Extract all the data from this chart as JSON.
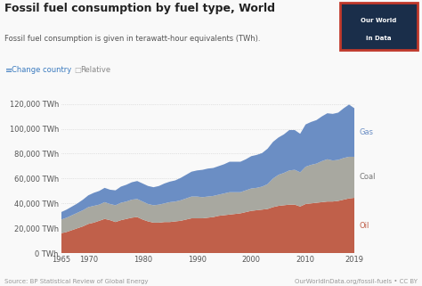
{
  "title": "Fossil fuel consumption by fuel type, World",
  "subtitle": "Fossil fuel consumption is given in terawatt-hour equivalents (TWh).",
  "source_left": "Source: BP Statistical Review of Global Energy",
  "source_right": "OurWorldInData.org/fossil-fuels • CC BY",
  "years": [
    1965,
    1966,
    1967,
    1968,
    1969,
    1970,
    1971,
    1972,
    1973,
    1974,
    1975,
    1976,
    1977,
    1978,
    1979,
    1980,
    1981,
    1982,
    1983,
    1984,
    1985,
    1986,
    1987,
    1988,
    1989,
    1990,
    1991,
    1992,
    1993,
    1994,
    1995,
    1996,
    1997,
    1998,
    1999,
    2000,
    2001,
    2002,
    2003,
    2004,
    2005,
    2006,
    2007,
    2008,
    2009,
    2010,
    2011,
    2012,
    2013,
    2014,
    2015,
    2016,
    2017,
    2018,
    2019
  ],
  "oil": [
    16000,
    17000,
    18500,
    20000,
    21500,
    23500,
    24500,
    26000,
    27500,
    26500,
    25000,
    26500,
    27500,
    28500,
    29000,
    27000,
    25500,
    24500,
    24500,
    25000,
    25000,
    25500,
    26000,
    27000,
    28000,
    28000,
    28000,
    28500,
    29000,
    30000,
    30500,
    31000,
    31500,
    32000,
    33000,
    34000,
    34500,
    35000,
    35500,
    37000,
    38000,
    38500,
    39000,
    39000,
    37500,
    39500,
    40000,
    40500,
    41000,
    41500,
    41500,
    42000,
    43000,
    44000,
    44500
  ],
  "coal": [
    11000,
    11500,
    12000,
    12500,
    13000,
    13500,
    13500,
    13000,
    13500,
    13000,
    13500,
    14000,
    14000,
    14500,
    14500,
    14500,
    14000,
    14000,
    14500,
    15000,
    16000,
    16000,
    16500,
    17000,
    17500,
    17500,
    17000,
    17000,
    17000,
    17000,
    17500,
    18000,
    17500,
    17000,
    17500,
    18000,
    18000,
    18500,
    20000,
    23000,
    25000,
    26000,
    27500,
    28000,
    27500,
    30000,
    31000,
    31500,
    33000,
    34000,
    33000,
    33000,
    33500,
    33500,
    33000
  ],
  "gas": [
    6000,
    6500,
    7000,
    7500,
    8500,
    9500,
    10500,
    11000,
    11500,
    11500,
    12000,
    13000,
    13500,
    14000,
    14500,
    14500,
    14500,
    14500,
    15000,
    16000,
    16500,
    17000,
    18000,
    19000,
    20000,
    21000,
    22000,
    22500,
    22500,
    23000,
    23500,
    24500,
    24500,
    24500,
    25000,
    26000,
    26500,
    27000,
    28500,
    29500,
    30000,
    31000,
    32500,
    32000,
    31000,
    34000,
    34500,
    35000,
    36000,
    37000,
    37500,
    38000,
    40000,
    42000,
    39000
  ],
  "color_oil": "#c0604a",
  "color_coal": "#a8a8a0",
  "color_gas": "#6b8ec4",
  "bg_color": "#f9f9f9",
  "ylim": [
    0,
    130000
  ],
  "xlim": [
    1965,
    2019
  ],
  "logo_dark": "#1a2e4a",
  "logo_red_border": "#c0392b"
}
